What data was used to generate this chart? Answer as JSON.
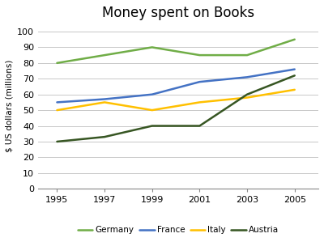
{
  "title": "Money spent on Books",
  "ylabel": "$ US dollars (millions)",
  "years": [
    1995,
    1997,
    1999,
    2001,
    2003,
    2005
  ],
  "series": {
    "Germany": {
      "values": [
        80,
        85,
        90,
        85,
        85,
        95
      ],
      "color": "#70ad47",
      "linewidth": 1.8
    },
    "France": {
      "values": [
        55,
        57,
        60,
        68,
        71,
        76
      ],
      "color": "#4472c4",
      "linewidth": 1.8
    },
    "Italy": {
      "values": [
        50,
        55,
        50,
        55,
        58,
        63
      ],
      "color": "#ffc000",
      "linewidth": 1.8
    },
    "Austria": {
      "values": [
        30,
        33,
        40,
        40,
        60,
        72
      ],
      "color": "#375623",
      "linewidth": 1.8
    }
  },
  "ylim": [
    0,
    105
  ],
  "yticks": [
    0,
    10,
    20,
    30,
    40,
    50,
    60,
    70,
    80,
    90,
    100
  ],
  "xticks": [
    1995,
    1997,
    1999,
    2001,
    2003,
    2005
  ],
  "xlim": [
    1994.2,
    2006.0
  ],
  "background_color": "#ffffff",
  "grid_color": "#c8c8c8",
  "title_fontsize": 12,
  "axis_fontsize": 7.5,
  "tick_fontsize": 8,
  "legend_order": [
    "Germany",
    "France",
    "Italy",
    "Austria"
  ]
}
